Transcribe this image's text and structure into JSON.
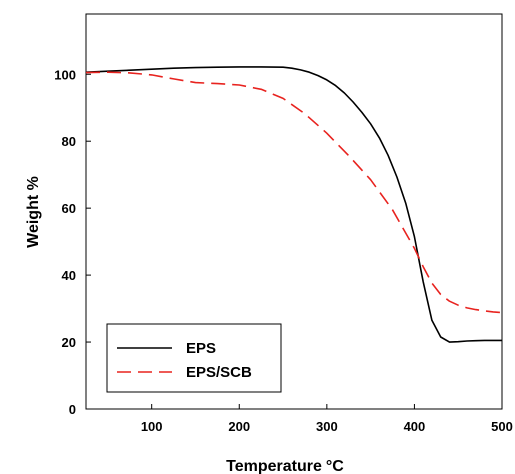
{
  "chart_data": {
    "type": "line",
    "xlabel": "Temperature",
    "xlabel_unit": "°C",
    "ylabel": "Weight %",
    "xlim": [
      25,
      500
    ],
    "ylim": [
      0,
      118
    ],
    "xticks": [
      100,
      200,
      300,
      400,
      500
    ],
    "yticks": [
      0,
      20,
      40,
      60,
      80,
      100
    ],
    "grid": false,
    "legend_position": "bottom-left",
    "series": [
      {
        "name": "EPS",
        "color": "#000000",
        "dash": "solid",
        "x": [
          25,
          50,
          75,
          100,
          125,
          150,
          175,
          200,
          225,
          250,
          260,
          270,
          280,
          290,
          300,
          310,
          320,
          330,
          340,
          350,
          360,
          370,
          380,
          390,
          400,
          410,
          420,
          430,
          440,
          450,
          460,
          470,
          480,
          490,
          500
        ],
        "y": [
          100.6,
          100.9,
          101.2,
          101.5,
          101.8,
          102.0,
          102.1,
          102.2,
          102.2,
          102.1,
          101.8,
          101.3,
          100.6,
          99.6,
          98.3,
          96.6,
          94.4,
          91.7,
          88.6,
          85.2,
          81.0,
          75.8,
          69.3,
          61.5,
          51.5,
          38.0,
          26.5,
          21.5,
          20.0,
          20.1,
          20.3,
          20.4,
          20.5,
          20.5,
          20.5
        ]
      },
      {
        "name": "EPS/SCB",
        "color": "#e8231f",
        "dash": "dashed",
        "x": [
          25,
          50,
          75,
          100,
          125,
          150,
          175,
          200,
          225,
          250,
          275,
          300,
          325,
          350,
          375,
          400,
          410,
          420,
          430,
          440,
          450,
          460,
          470,
          480,
          490,
          500
        ],
        "y": [
          100.5,
          100.6,
          100.4,
          99.8,
          98.6,
          97.5,
          97.2,
          96.8,
          95.5,
          92.8,
          88.2,
          82.4,
          75.7,
          68.5,
          59.5,
          48.0,
          42.5,
          37.6,
          34.2,
          32.2,
          31.0,
          30.2,
          29.7,
          29.3,
          29.0,
          28.8
        ]
      }
    ]
  }
}
